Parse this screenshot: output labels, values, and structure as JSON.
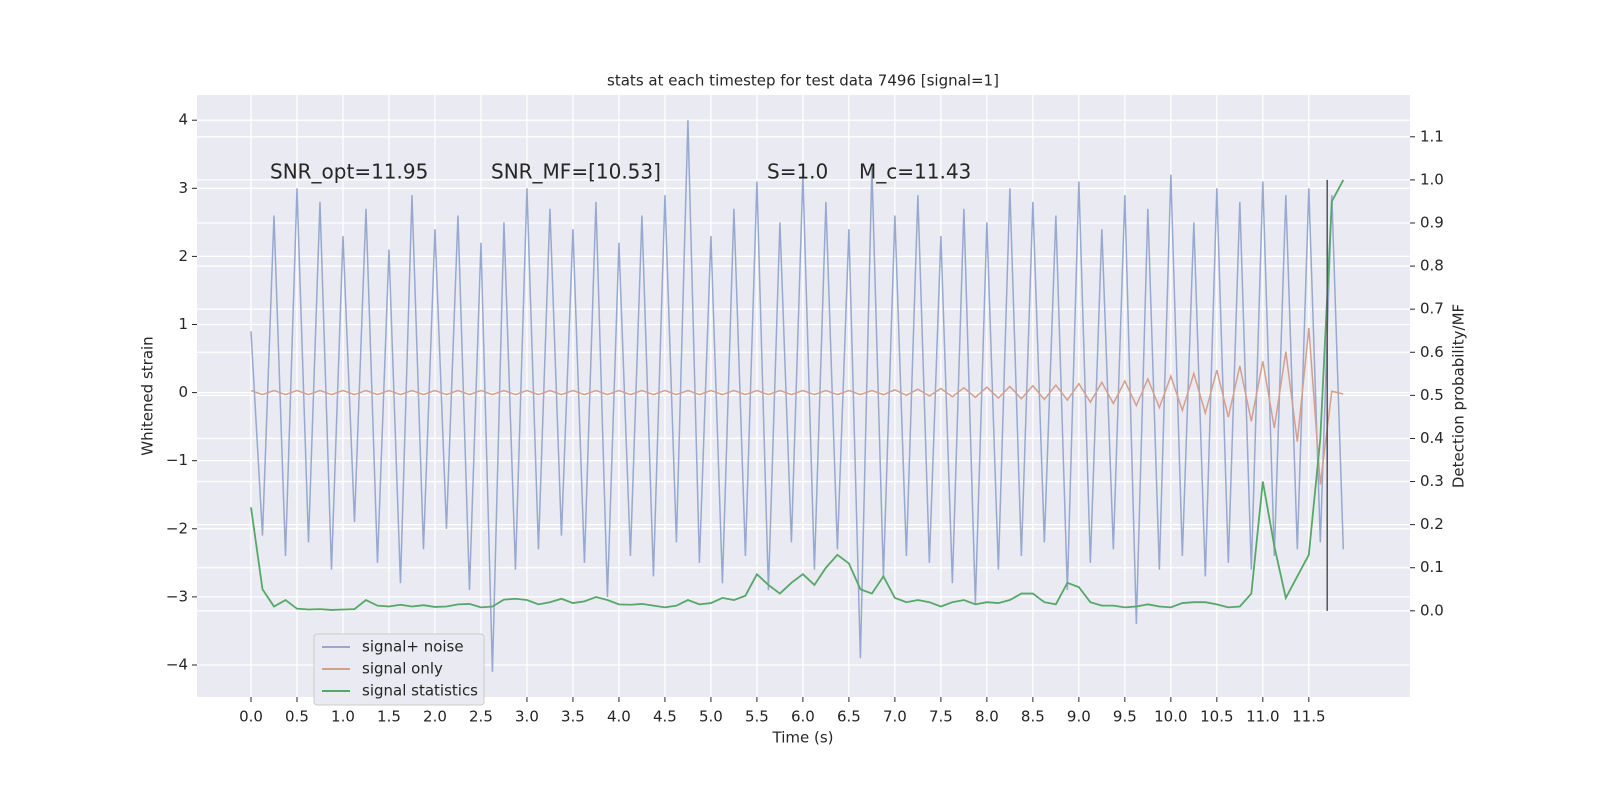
{
  "chart_data": {
    "type": "line",
    "title": "stats at each timestep for test data 7496 [signal=1]",
    "xlabel": "Time (s)",
    "ylabel": "Whitened strain",
    "y2label": "Detection probability/MF",
    "annotations": [
      "SNR_opt=11.95",
      "SNR_MF=[10.53]",
      "S=1.0",
      "M_c=11.43"
    ],
    "x": [
      0,
      0.125,
      0.25,
      0.375,
      0.5,
      0.625,
      0.75,
      0.875,
      1,
      1.125,
      1.25,
      1.375,
      1.5,
      1.625,
      1.75,
      1.875,
      2,
      2.125,
      2.25,
      2.375,
      2.5,
      2.625,
      2.75,
      2.875,
      3,
      3.125,
      3.25,
      3.375,
      3.5,
      3.625,
      3.75,
      3.875,
      4,
      4.125,
      4.25,
      4.375,
      4.5,
      4.625,
      4.75,
      4.875,
      5,
      5.125,
      5.25,
      5.375,
      5.5,
      5.625,
      5.75,
      5.875,
      6,
      6.125,
      6.25,
      6.375,
      6.5,
      6.625,
      6.75,
      6.875,
      7,
      7.125,
      7.25,
      7.375,
      7.5,
      7.625,
      7.75,
      7.875,
      8,
      8.125,
      8.25,
      8.375,
      8.5,
      8.625,
      8.75,
      8.875,
      9,
      9.125,
      9.25,
      9.375,
      9.5,
      9.625,
      9.75,
      9.875,
      10,
      10.125,
      10.25,
      10.375,
      10.5,
      10.625,
      10.75,
      10.875,
      11,
      11.125,
      11.25,
      11.375,
      11.5,
      11.625,
      11.75,
      11.875
    ],
    "series": [
      {
        "name": "signal+ noise",
        "color": "#97a9cf",
        "values": [
          0.9,
          -2.1,
          2.6,
          -2.4,
          3.0,
          -2.2,
          2.8,
          -2.6,
          2.3,
          -1.9,
          2.7,
          -2.5,
          2.1,
          -2.8,
          2.9,
          -2.3,
          2.4,
          -2.0,
          2.6,
          -2.9,
          2.2,
          -4.1,
          2.5,
          -2.6,
          3.0,
          -2.3,
          2.7,
          -2.1,
          2.4,
          -2.5,
          2.8,
          -3.0,
          2.2,
          -2.4,
          2.6,
          -2.7,
          2.9,
          -2.2,
          4.0,
          -2.5,
          2.3,
          -2.8,
          2.7,
          -2.4,
          3.1,
          -2.9,
          2.5,
          -2.2,
          3.2,
          -2.6,
          2.8,
          -2.3,
          2.4,
          -3.9,
          3.3,
          -2.7,
          2.6,
          -2.4,
          2.9,
          -2.5,
          2.3,
          -2.8,
          2.7,
          -3.1,
          2.5,
          -2.6,
          3.0,
          -2.4,
          2.8,
          -2.2,
          2.6,
          -2.9,
          3.1,
          -2.5,
          2.4,
          -2.3,
          2.9,
          -3.4,
          2.7,
          -2.6,
          3.2,
          -2.4,
          2.5,
          -2.7,
          3.0,
          -2.5,
          2.8,
          -2.6,
          3.1,
          -2.4,
          2.9,
          -2.3,
          3.0,
          -2.2,
          2.9,
          -2.3
        ]
      },
      {
        "name": "signal only",
        "color": "#d4a08e",
        "values": [
          0.03,
          -0.03,
          0.03,
          -0.03,
          0.03,
          -0.03,
          0.03,
          -0.03,
          0.03,
          -0.03,
          0.03,
          -0.03,
          0.03,
          -0.03,
          0.03,
          -0.03,
          0.03,
          -0.03,
          0.03,
          -0.03,
          0.03,
          -0.03,
          0.03,
          -0.03,
          0.03,
          -0.03,
          0.03,
          -0.03,
          0.03,
          -0.03,
          0.03,
          -0.03,
          0.03,
          -0.03,
          0.03,
          -0.03,
          0.03,
          -0.03,
          0.03,
          -0.03,
          0.03,
          -0.03,
          0.03,
          -0.03,
          0.03,
          -0.03,
          0.03,
          -0.03,
          0.03,
          -0.03,
          0.03,
          -0.03,
          0.03,
          -0.03,
          0.03,
          -0.03,
          0.04,
          -0.04,
          0.05,
          -0.05,
          0.06,
          -0.06,
          0.07,
          -0.07,
          0.08,
          -0.08,
          0.09,
          -0.09,
          0.1,
          -0.1,
          0.11,
          -0.11,
          0.13,
          -0.14,
          0.15,
          -0.16,
          0.17,
          -0.19,
          0.2,
          -0.22,
          0.24,
          -0.26,
          0.28,
          -0.3,
          0.33,
          -0.36,
          0.39,
          -0.42,
          0.46,
          -0.52,
          0.6,
          -0.72,
          0.95,
          -1.35,
          0.02,
          -0.02
        ]
      },
      {
        "name": "signal statistics",
        "color": "#55a868",
        "axis": "y2",
        "values": [
          0.24,
          0.05,
          0.01,
          0.025,
          0.005,
          0.003,
          0.004,
          0.002,
          0.003,
          0.004,
          0.025,
          0.012,
          0.01,
          0.014,
          0.01,
          0.013,
          0.009,
          0.01,
          0.015,
          0.016,
          0.008,
          0.01,
          0.026,
          0.028,
          0.025,
          0.015,
          0.02,
          0.028,
          0.018,
          0.022,
          0.032,
          0.025,
          0.015,
          0.014,
          0.016,
          0.012,
          0.008,
          0.012,
          0.025,
          0.015,
          0.018,
          0.03,
          0.025,
          0.035,
          0.085,
          0.06,
          0.04,
          0.065,
          0.085,
          0.06,
          0.1,
          0.13,
          0.11,
          0.05,
          0.04,
          0.08,
          0.03,
          0.02,
          0.025,
          0.02,
          0.01,
          0.02,
          0.025,
          0.015,
          0.02,
          0.018,
          0.025,
          0.04,
          0.04,
          0.02,
          0.015,
          0.065,
          0.055,
          0.02,
          0.012,
          0.012,
          0.008,
          0.01,
          0.015,
          0.01,
          0.008,
          0.018,
          0.02,
          0.02,
          0.015,
          0.008,
          0.01,
          0.04,
          0.3,
          0.15,
          0.03,
          0.08,
          0.13,
          0.4,
          0.95,
          1.0
        ]
      }
    ],
    "vline": {
      "x": 11.7,
      "y2": [
        0,
        1
      ],
      "color": "#555555"
    },
    "xlim": [
      -0.587,
      12.6
    ],
    "xticks": [
      {
        "value": 0,
        "label": "0.0"
      },
      0.5,
      {
        "value": 1,
        "label": "1.0"
      },
      1.5,
      {
        "value": 2,
        "label": "2.0"
      },
      2.5,
      {
        "value": 3,
        "label": "3.0"
      },
      3.5,
      {
        "value": 4,
        "label": "4.0"
      },
      4.5,
      {
        "value": 5,
        "label": "5.0"
      },
      5.5,
      {
        "value": 6,
        "label": "6.0"
      },
      6.5,
      {
        "value": 7,
        "label": "7.0"
      },
      7.5,
      {
        "value": 8,
        "label": "8.0"
      },
      8.5,
      {
        "value": 9,
        "label": "9.0"
      },
      9.5,
      {
        "value": 10,
        "label": "10.0"
      },
      10.5,
      {
        "value": 11,
        "label": "11.0"
      },
      11.5
    ],
    "ylim": [
      -4.47,
      4.37
    ],
    "yticks": [
      {
        "value": -4,
        "label": "−4"
      },
      {
        "value": -3,
        "label": "−3"
      },
      {
        "value": -2,
        "label": "−2"
      },
      {
        "value": -1,
        "label": "−1"
      },
      0,
      1,
      2,
      3,
      4
    ],
    "y2lim": [
      -0.2,
      1.197
    ],
    "y2ticks": [
      {
        "value": 0,
        "label": "0.0"
      },
      0.1,
      0.2,
      0.3,
      0.4,
      0.5,
      0.6,
      0.7,
      0.8,
      0.9,
      {
        "value": 1,
        "label": "1.0"
      },
      1.1
    ],
    "grid": true,
    "legend": "lower left"
  }
}
